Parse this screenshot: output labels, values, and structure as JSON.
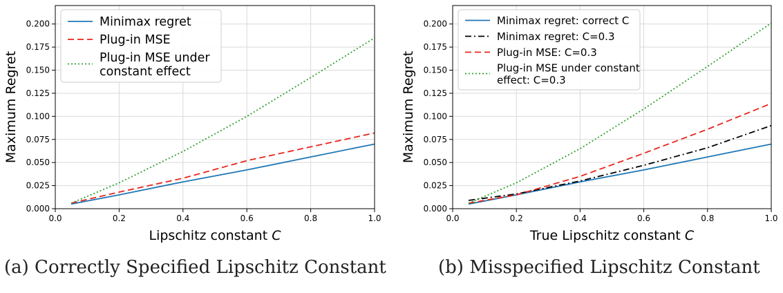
{
  "chart_data": [
    {
      "type": "line",
      "panel": "a",
      "title": "",
      "caption": "(a) Correctly Specified Lipschitz Constant",
      "xlabel": "Lipschitz constant",
      "xlabel_symbol": "C",
      "ylabel": "Maximum Regret",
      "xlim": [
        0.0,
        1.0
      ],
      "ylim": [
        0.0,
        0.22
      ],
      "xticks": [
        "0.0",
        "0.2",
        "0.4",
        "0.6",
        "0.8",
        "1.0"
      ],
      "yticks": [
        "0.000",
        "0.025",
        "0.050",
        "0.075",
        "0.100",
        "0.125",
        "0.150",
        "0.175",
        "0.200"
      ],
      "grid": true,
      "legend_position": "upper-left",
      "x": [
        0.05,
        0.2,
        0.4,
        0.6,
        0.8,
        1.0
      ],
      "series": [
        {
          "name": "Minimax regret",
          "color": "#1f77b4",
          "style": "solid",
          "values": [
            0.005,
            0.015,
            0.029,
            0.042,
            0.056,
            0.07
          ]
        },
        {
          "name": "Plug-in MSE",
          "color": "#e8241c",
          "style": "dashed",
          "values": [
            0.006,
            0.018,
            0.033,
            0.052,
            0.067,
            0.082
          ]
        },
        {
          "name": "Plug-in MSE under constant effect",
          "color": "#2ca02c",
          "style": "dotted",
          "values": [
            0.006,
            0.028,
            0.062,
            0.1,
            0.142,
            0.185
          ]
        }
      ]
    },
    {
      "type": "line",
      "panel": "b",
      "title": "",
      "caption": "(b) Misspecified Lipschitz Constant",
      "xlabel": "True Lipschitz constant",
      "xlabel_symbol": "C",
      "ylabel": "Maximum Regret",
      "xlim": [
        0.0,
        1.0
      ],
      "ylim": [
        0.0,
        0.22
      ],
      "xticks": [
        "0.0",
        "0.2",
        "0.4",
        "0.6",
        "0.8",
        "1.0"
      ],
      "yticks": [
        "0.000",
        "0.025",
        "0.050",
        "0.075",
        "0.100",
        "0.125",
        "0.150",
        "0.175",
        "0.200"
      ],
      "grid": true,
      "legend_position": "upper-left",
      "x": [
        0.05,
        0.2,
        0.4,
        0.6,
        0.8,
        1.0
      ],
      "series": [
        {
          "name": "Minimax regret: correct C",
          "color": "#1f77b4",
          "style": "solid",
          "values": [
            0.005,
            0.015,
            0.029,
            0.042,
            0.056,
            0.07
          ]
        },
        {
          "name": "Minimax regret: C=0.3",
          "color": "#000000",
          "style": "dashdot",
          "values": [
            0.009,
            0.016,
            0.03,
            0.047,
            0.066,
            0.09
          ]
        },
        {
          "name": "Plug-in MSE: C=0.3",
          "color": "#e8241c",
          "style": "dashed",
          "values": [
            0.006,
            0.015,
            0.035,
            0.06,
            0.086,
            0.114
          ]
        },
        {
          "name": "Plug-in MSE under constant effect: C=0.3",
          "color": "#2ca02c",
          "style": "dotted",
          "values": [
            0.006,
            0.028,
            0.065,
            0.108,
            0.154,
            0.201
          ]
        }
      ]
    }
  ]
}
